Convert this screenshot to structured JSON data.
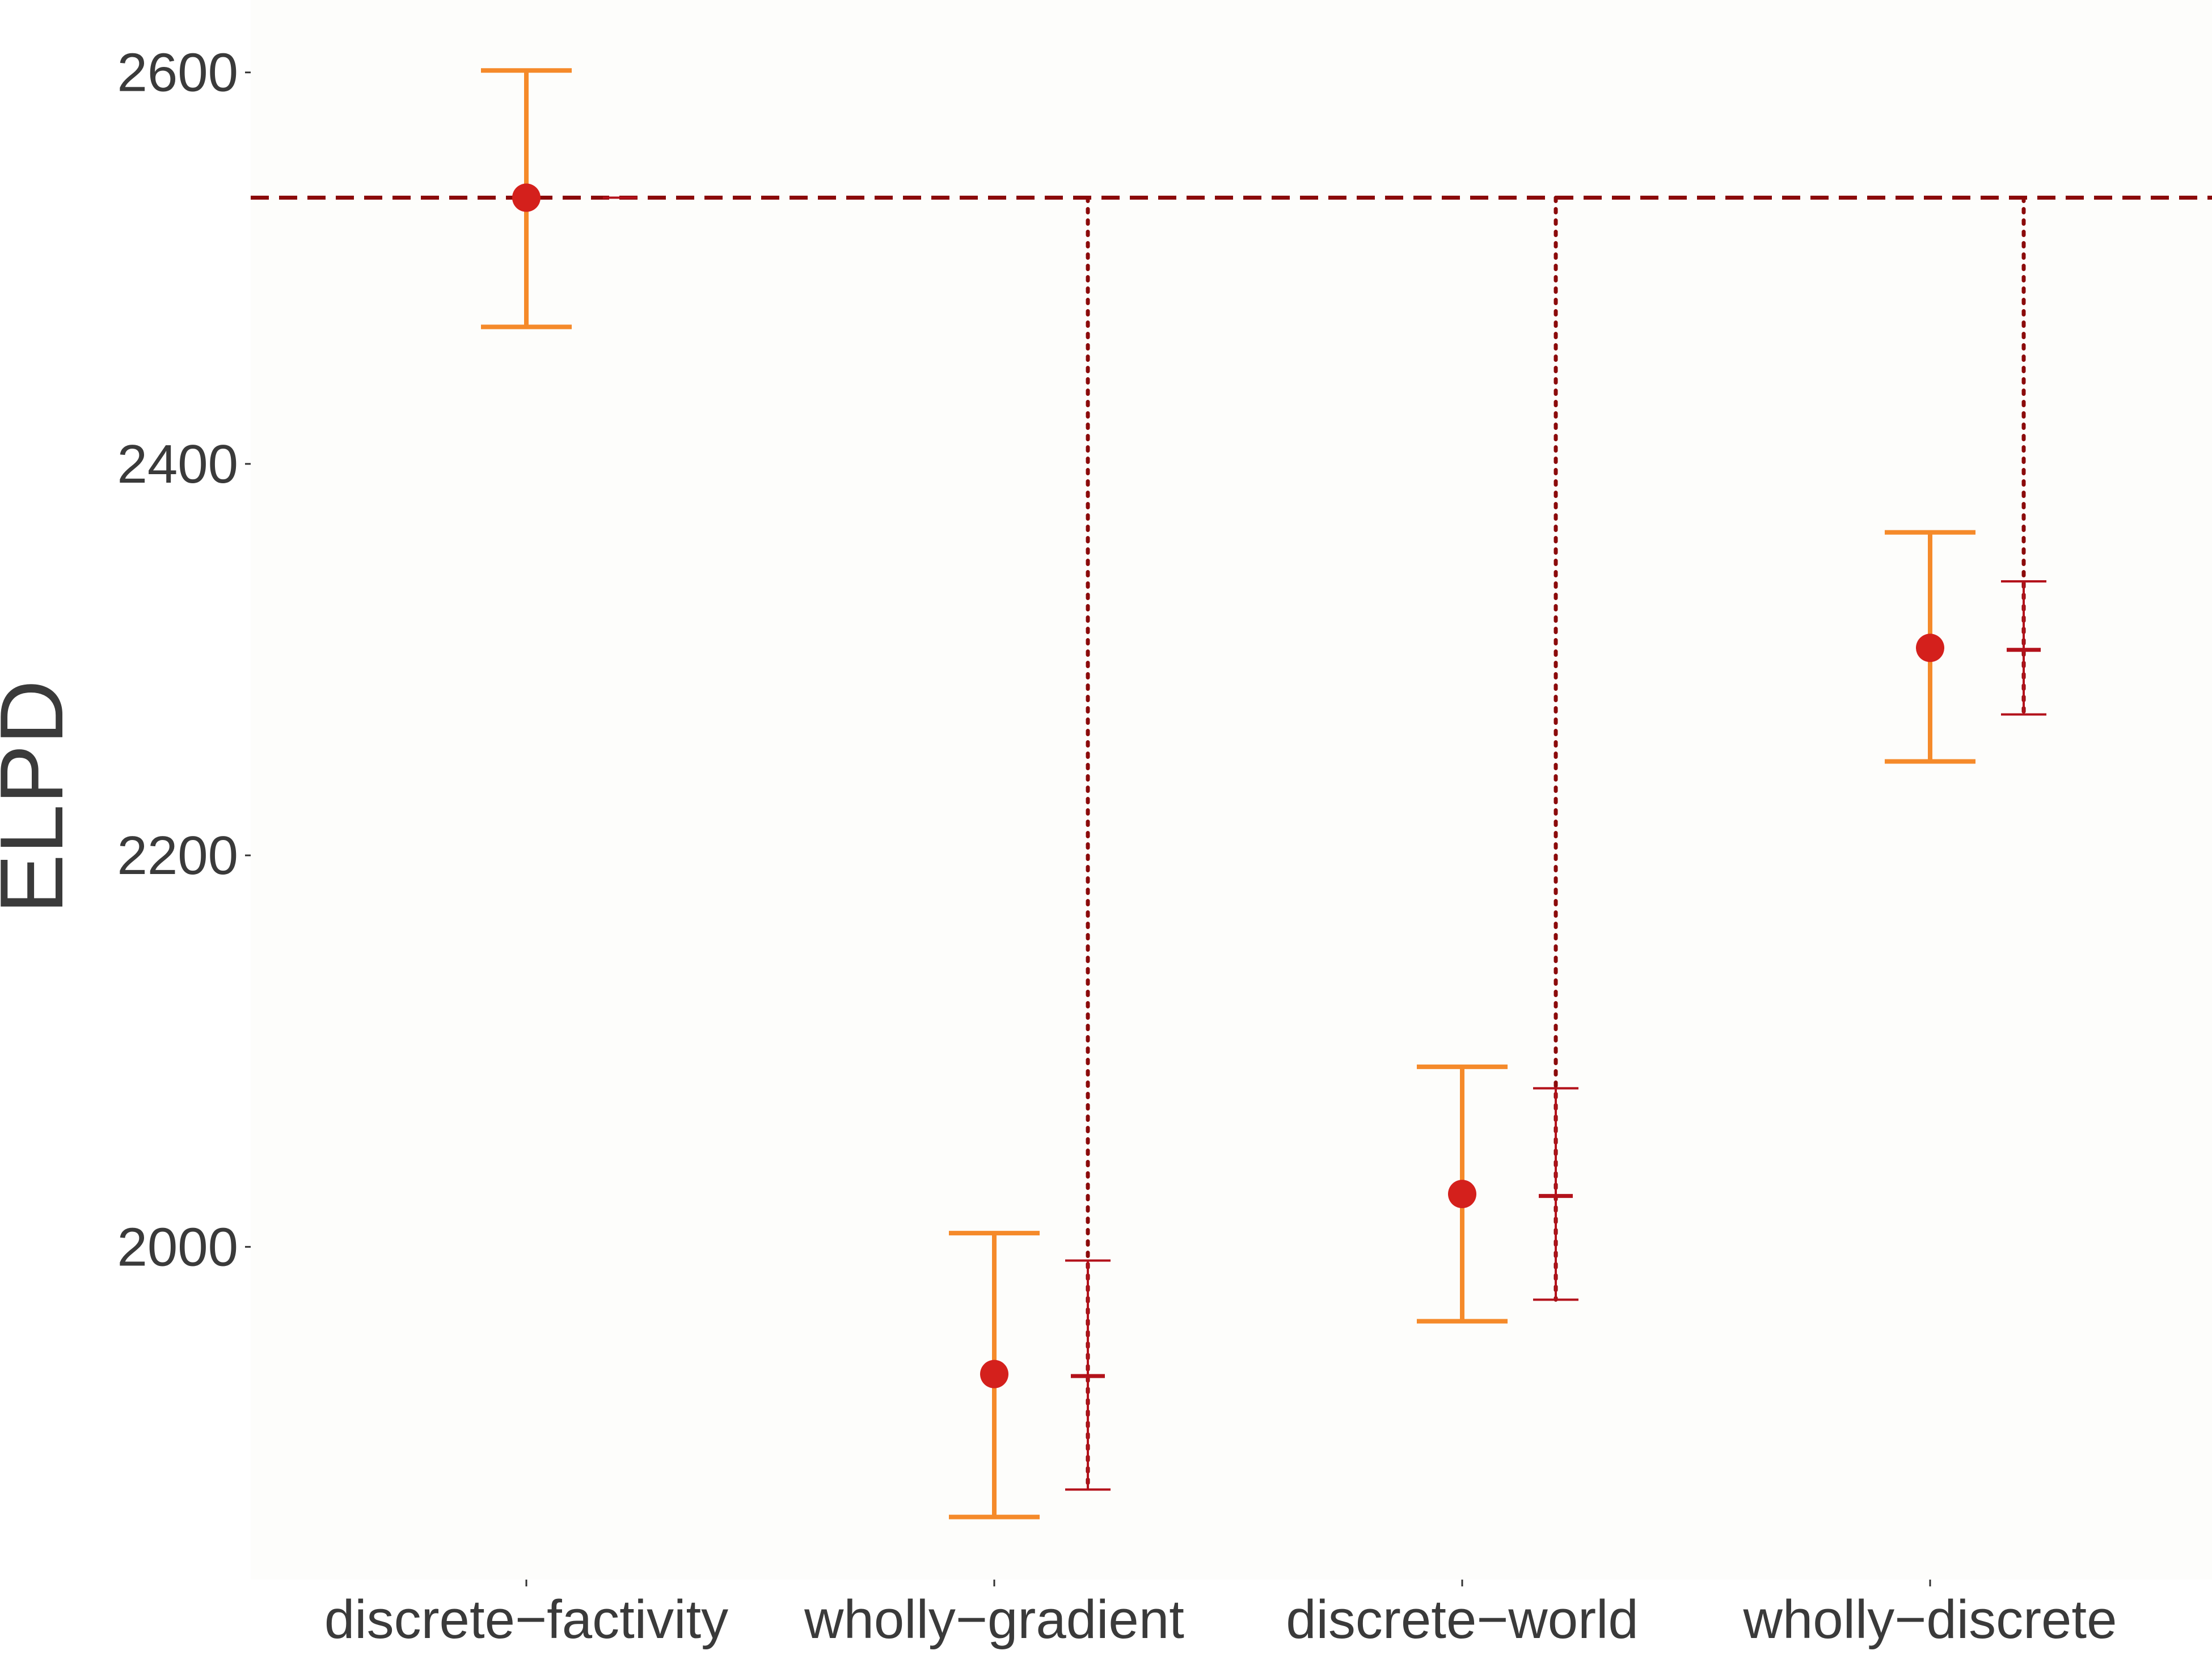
{
  "chart_data": {
    "type": "scatter",
    "title": "",
    "xlabel": "",
    "ylabel": "ELPD",
    "ylim": [
      1830,
      2637
    ],
    "yticks": [
      2000,
      2200,
      2400,
      2600
    ],
    "ytick_labels": [
      "2000",
      "2200",
      "2400",
      "2600"
    ],
    "categories": [
      "discrete−factivity",
      "wholly−gradient",
      "discrete−world",
      "wholly−discrete"
    ],
    "reference_line": {
      "y": 2536,
      "style": "dashed",
      "color": "#8B0A0A"
    },
    "series": [
      {
        "kind": "elpd_estimate",
        "color": "#F58A2A",
        "point_color": "#D4201C",
        "points": [
          {
            "category": "discrete−factivity",
            "y": 2536,
            "lower": 2470,
            "upper": 2601
          },
          {
            "category": "wholly−gradient",
            "y": 1935,
            "lower": 1862,
            "upper": 2007
          },
          {
            "category": "discrete−world",
            "y": 2027,
            "lower": 1962,
            "upper": 2092
          },
          {
            "category": "wholly−discrete",
            "y": 2306,
            "lower": 2248,
            "upper": 2365
          }
        ]
      },
      {
        "kind": "elpd_difference_from_reference",
        "color": "#B3121B",
        "connector_color": "#8B0A0A",
        "points": [
          {
            "category": "discrete−factivity",
            "y": 2536,
            "lower": 2536,
            "upper": 2536
          },
          {
            "category": "wholly−gradient",
            "y": 1934,
            "lower": 1876,
            "upper": 1993
          },
          {
            "category": "discrete−world",
            "y": 2026,
            "lower": 1973,
            "upper": 2081
          },
          {
            "category": "wholly−discrete",
            "y": 2305,
            "lower": 2272,
            "upper": 2340
          }
        ]
      }
    ],
    "background": "#FDFDFB",
    "grid": false,
    "legend": "none"
  }
}
